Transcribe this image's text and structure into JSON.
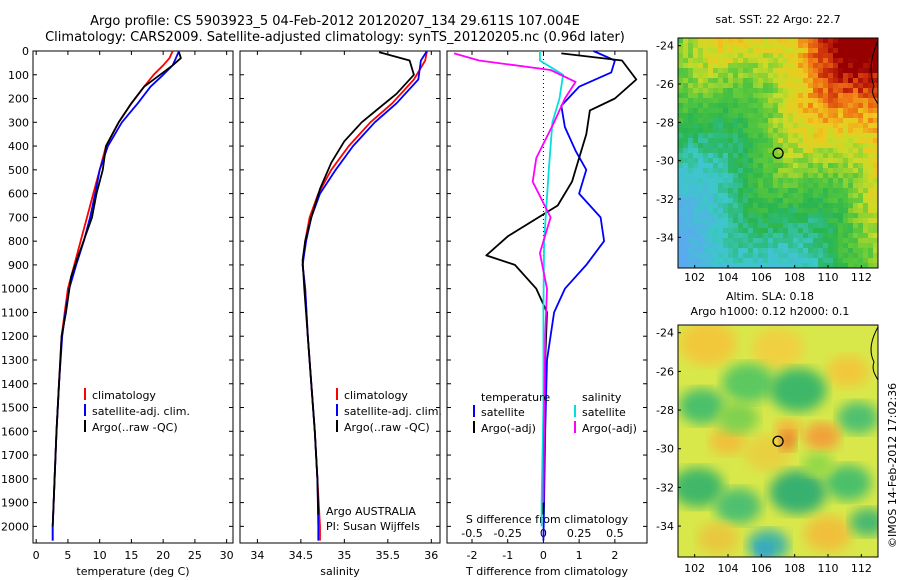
{
  "header": {
    "line1": "Argo profile: CS 5903923_5 04-Feb-2012 20120207_134 29.611S 107.004E",
    "line2": "Climatology: CARS2009. Satellite-adjusted climatology: synTS_20120205.nc (0.96d later)"
  },
  "colors": {
    "climatology": "#ff0000",
    "satellite": "#0000ff",
    "argo": "#000000",
    "sat_salinity": "#00e0e0",
    "argo_salinity": "#ff00ff"
  },
  "chart_data": [
    {
      "type": "line",
      "id": "temperature",
      "xlabel": "temperature (deg C)",
      "xlim": [
        -0.5,
        31
      ],
      "xticks": [
        0,
        5,
        10,
        15,
        20,
        25,
        30
      ],
      "ylim": [
        0,
        2070
      ],
      "yticks": [
        0,
        100,
        200,
        300,
        400,
        500,
        600,
        700,
        800,
        900,
        1000,
        1100,
        1200,
        1300,
        1400,
        1500,
        1600,
        1700,
        1800,
        1900,
        2000
      ],
      "legend": [
        "climatology",
        "satellite-adj. clim.",
        "Argo(..raw -QC)"
      ],
      "series": [
        {
          "name": "climatology",
          "color": "#ff0000",
          "points": [
            [
              21.5,
              0
            ],
            [
              21,
              30
            ],
            [
              20,
              60
            ],
            [
              18.5,
              100
            ],
            [
              17,
              150
            ],
            [
              15,
              220
            ],
            [
              13,
              300
            ],
            [
              11,
              400
            ],
            [
              10,
              500
            ],
            [
              9,
              600
            ],
            [
              8,
              700
            ],
            [
              7,
              800
            ],
            [
              6,
              900
            ],
            [
              5,
              1000
            ],
            [
              4.5,
              1100
            ],
            [
              4,
              1200
            ],
            [
              3.6,
              1400
            ],
            [
              3.2,
              1600
            ],
            [
              2.9,
              1800
            ],
            [
              2.6,
              2000
            ],
            [
              2.6,
              2060
            ]
          ]
        },
        {
          "name": "satellite-adj. clim.",
          "color": "#0000ff",
          "points": [
            [
              22.5,
              0
            ],
            [
              22,
              30
            ],
            [
              21.5,
              60
            ],
            [
              20,
              100
            ],
            [
              18,
              150
            ],
            [
              16,
              220
            ],
            [
              13.5,
              300
            ],
            [
              11.3,
              400
            ],
            [
              10,
              500
            ],
            [
              9.3,
              600
            ],
            [
              8.5,
              700
            ],
            [
              7.5,
              800
            ],
            [
              6.3,
              900
            ],
            [
              5.2,
              1000
            ],
            [
              4.6,
              1100
            ],
            [
              4.1,
              1200
            ],
            [
              3.6,
              1400
            ],
            [
              3.2,
              1600
            ],
            [
              2.9,
              1800
            ],
            [
              2.6,
              2000
            ],
            [
              2.6,
              2060
            ]
          ]
        },
        {
          "name": "Argo(..raw -QC)",
          "color": "#000000",
          "points": [
            [
              22.5,
              5
            ],
            [
              22.8,
              30
            ],
            [
              21.5,
              60
            ],
            [
              19.5,
              100
            ],
            [
              17,
              150
            ],
            [
              15,
              220
            ],
            [
              13,
              300
            ],
            [
              11,
              400
            ],
            [
              10.5,
              500
            ],
            [
              9.5,
              600
            ],
            [
              8.8,
              700
            ],
            [
              6.8,
              850
            ],
            [
              5.5,
              950
            ],
            [
              4.7,
              1100
            ],
            [
              4,
              1200
            ],
            [
              3.6,
              1400
            ],
            [
              3.2,
              1600
            ],
            [
              2.9,
              1800
            ],
            [
              2.6,
              2000
            ]
          ]
        }
      ]
    },
    {
      "type": "line",
      "id": "salinity",
      "xlabel": "salinity",
      "xlim": [
        33.8,
        36.1
      ],
      "xticks": [
        34,
        34.5,
        35,
        35.5,
        36
      ],
      "ylim": [
        0,
        2070
      ],
      "legend": [
        "climatology",
        "satellite-adj. clim.",
        "Argo(..raw -QC)"
      ],
      "annotation": [
        "Argo AUSTRALIA",
        "PI: Susan Wijffels"
      ],
      "series": [
        {
          "name": "climatology",
          "color": "#ff0000",
          "points": [
            [
              35.95,
              0
            ],
            [
              35.93,
              40
            ],
            [
              35.8,
              120
            ],
            [
              35.55,
              220
            ],
            [
              35.3,
              300
            ],
            [
              35.05,
              400
            ],
            [
              34.85,
              500
            ],
            [
              34.7,
              600
            ],
            [
              34.6,
              700
            ],
            [
              34.55,
              800
            ],
            [
              34.52,
              900
            ],
            [
              34.55,
              1000
            ],
            [
              34.58,
              1200
            ],
            [
              34.62,
              1400
            ],
            [
              34.66,
              1600
            ],
            [
              34.69,
              1800
            ],
            [
              34.72,
              2000
            ],
            [
              34.72,
              2060
            ]
          ]
        },
        {
          "name": "satellite-adj. clim.",
          "color": "#0000ff",
          "points": [
            [
              35.95,
              0
            ],
            [
              35.88,
              40
            ],
            [
              35.85,
              120
            ],
            [
              35.6,
              220
            ],
            [
              35.35,
              300
            ],
            [
              35.1,
              400
            ],
            [
              34.9,
              500
            ],
            [
              34.72,
              600
            ],
            [
              34.62,
              700
            ],
            [
              34.56,
              800
            ],
            [
              34.52,
              900
            ],
            [
              34.55,
              1000
            ],
            [
              34.58,
              1200
            ],
            [
              34.62,
              1400
            ],
            [
              34.66,
              1600
            ],
            [
              34.69,
              1800
            ],
            [
              34.7,
              2000
            ],
            [
              34.7,
              2060
            ]
          ]
        },
        {
          "name": "Argo(..raw -QC)",
          "color": "#000000",
          "points": [
            [
              35.4,
              5
            ],
            [
              35.75,
              40
            ],
            [
              35.8,
              100
            ],
            [
              35.6,
              180
            ],
            [
              35.4,
              240
            ],
            [
              35.2,
              300
            ],
            [
              35.0,
              380
            ],
            [
              34.85,
              470
            ],
            [
              34.72,
              580
            ],
            [
              34.62,
              700
            ],
            [
              34.55,
              800
            ],
            [
              34.52,
              880
            ],
            [
              34.54,
              1000
            ],
            [
              34.58,
              1200
            ],
            [
              34.62,
              1400
            ],
            [
              34.66,
              1600
            ],
            [
              34.69,
              1800
            ],
            [
              34.7,
              1950
            ]
          ]
        }
      ]
    },
    {
      "type": "line",
      "id": "difference",
      "xlabel_top": "S difference from climatology",
      "xlabel": "T difference from climatology",
      "xticks_top": [
        -0.5,
        -0.25,
        0,
        0.25,
        0.5
      ],
      "xticks_top_labels": [
        "-0.5",
        "-0.25",
        "0",
        "0.25",
        "0.5"
      ],
      "xticks": [
        -2,
        -1,
        0,
        1,
        2
      ],
      "xlim": [
        -2.7,
        2.9
      ],
      "ylim": [
        0,
        2070
      ],
      "legend_left_title": "temperature",
      "legend_left": [
        "satellite",
        "Argo(-adj)"
      ],
      "legend_right_title": "salinity",
      "legend_right": [
        "satellite",
        "Argo(-adj)"
      ],
      "series": [
        {
          "name": "temperature satellite",
          "color": "#0000ff",
          "points": [
            [
              1.4,
              0
            ],
            [
              2.0,
              40
            ],
            [
              1.9,
              90
            ],
            [
              1.0,
              150
            ],
            [
              0.5,
              230
            ],
            [
              0.6,
              320
            ],
            [
              0.9,
              420
            ],
            [
              1.2,
              500
            ],
            [
              1.0,
              600
            ],
            [
              1.6,
              700
            ],
            [
              1.7,
              800
            ],
            [
              1.2,
              900
            ],
            [
              0.6,
              1000
            ],
            [
              0.3,
              1100
            ],
            [
              0.1,
              1300
            ],
            [
              0.05,
              1600
            ],
            [
              0.02,
              1900
            ],
            [
              0.0,
              2060
            ]
          ]
        },
        {
          "name": "temperature Argo(-adj)",
          "color": "#000000",
          "points": [
            [
              0.5,
              10
            ],
            [
              2.2,
              40
            ],
            [
              2.6,
              120
            ],
            [
              2.0,
              200
            ],
            [
              1.3,
              250
            ],
            [
              1.2,
              350
            ],
            [
              1.0,
              450
            ],
            [
              0.8,
              550
            ],
            [
              0.4,
              650
            ],
            [
              -1.0,
              780
            ],
            [
              -1.6,
              860
            ],
            [
              -0.8,
              900
            ],
            [
              -0.2,
              1000
            ],
            [
              0.1,
              1100
            ],
            [
              0.05,
              1300
            ],
            [
              0.02,
              1600
            ],
            [
              0.0,
              1950
            ]
          ]
        },
        {
          "name": "salinity satellite",
          "color": "#00e0e0",
          "points": [
            [
              -0.1,
              0
            ],
            [
              -0.1,
              40
            ],
            [
              0.55,
              100
            ],
            [
              0.45,
              200
            ],
            [
              0.25,
              300
            ],
            [
              0.15,
              500
            ],
            [
              0.02,
              800
            ],
            [
              0.0,
              1100
            ],
            [
              0.0,
              1500
            ],
            [
              -0.05,
              1900
            ],
            [
              -0.05,
              2000
            ]
          ]
        },
        {
          "name": "salinity Argo(-adj)",
          "color": "#ff00ff",
          "points": [
            [
              -2.5,
              10
            ],
            [
              -1.8,
              40
            ],
            [
              0.2,
              80
            ],
            [
              0.9,
              130
            ],
            [
              0.6,
              200
            ],
            [
              0.3,
              300
            ],
            [
              -0.2,
              450
            ],
            [
              -0.3,
              550
            ],
            [
              0.2,
              700
            ],
            [
              -0.1,
              850
            ],
            [
              0.1,
              1000
            ],
            [
              0.05,
              1200
            ],
            [
              0.02,
              1600
            ],
            [
              0.0,
              1900
            ]
          ]
        }
      ]
    },
    {
      "type": "heatmap",
      "id": "sst_map",
      "title": "sat. SST: 22 Argo: 22.7",
      "xticks": [
        102,
        104,
        106,
        108,
        110,
        112
      ],
      "yticks": [
        -24,
        -26,
        -28,
        -30,
        -32,
        -34
      ],
      "xlim": [
        101,
        113
      ],
      "ylim": [
        -35.6,
        -23.6
      ],
      "marker": [
        107.004,
        -29.611
      ]
    },
    {
      "type": "heatmap",
      "id": "sla_map",
      "title_lines": [
        "Altim. SLA: 0.18",
        "Argo h1000: 0.12 h2000: 0.1"
      ],
      "xticks": [
        102,
        104,
        106,
        108,
        110,
        112
      ],
      "yticks": [
        -24,
        -26,
        -28,
        -30,
        -32,
        -34
      ],
      "xlim": [
        101,
        113
      ],
      "ylim": [
        -35.6,
        -23.6
      ],
      "marker": [
        107.004,
        -29.611
      ]
    }
  ],
  "credit": "©IMOS 14-Feb-2012 17:02:36"
}
